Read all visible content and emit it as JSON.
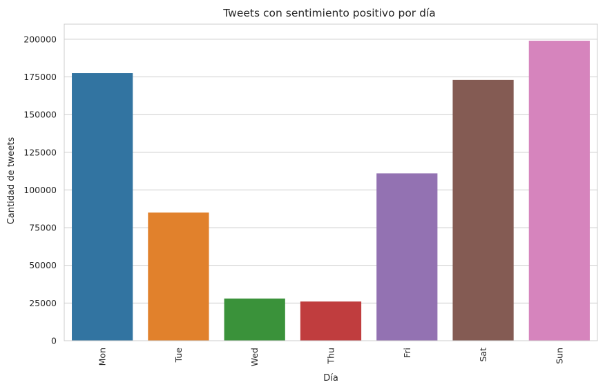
{
  "chart_data": {
    "type": "bar",
    "title": "Tweets con sentimiento positivo por día",
    "xlabel": "Día",
    "ylabel": "Cantidad de tweets",
    "categories": [
      "Mon",
      "Tue",
      "Wed",
      "Thu",
      "Fri",
      "Sat",
      "Sun"
    ],
    "values": [
      177500,
      85000,
      28000,
      26000,
      111000,
      173000,
      199000
    ],
    "colors": [
      "#3274a1",
      "#e1812c",
      "#3a923a",
      "#c03d3e",
      "#9372b2",
      "#845b53",
      "#d684bd"
    ],
    "ylim": [
      0,
      210000
    ],
    "yticks": [
      0,
      25000,
      50000,
      75000,
      100000,
      125000,
      150000,
      175000,
      200000
    ],
    "grid": true,
    "legend": "none"
  }
}
